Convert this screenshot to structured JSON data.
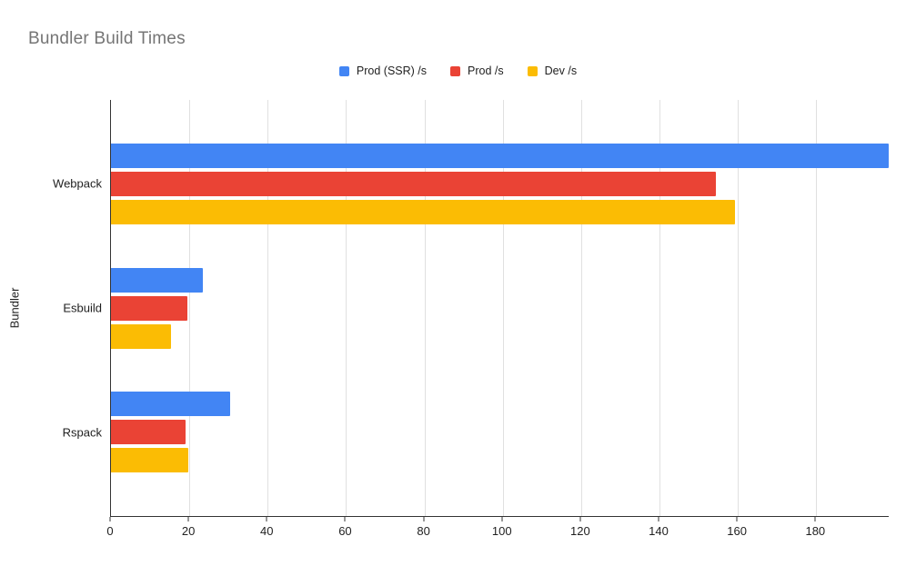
{
  "chart": {
    "title": "Bundler Build Times",
    "ylabel": "Bundler"
  },
  "chart_data": {
    "type": "bar",
    "orientation": "horizontal",
    "title": "Bundler Build Times",
    "xlabel": "",
    "ylabel": "Bundler",
    "categories": [
      "Webpack",
      "Esbuild",
      "Rspack"
    ],
    "series": [
      {
        "name": "Prod (SSR) /s",
        "color": "#4285F4",
        "values": [
          198.5,
          23.5,
          30.4
        ]
      },
      {
        "name": "Prod /s",
        "color": "#EA4335",
        "values": [
          154.3,
          19.4,
          19.0
        ]
      },
      {
        "name": "Dev /s",
        "color": "#FBBC04",
        "values": [
          159.3,
          15.3,
          19.8
        ]
      }
    ],
    "xlim": [
      0,
      198.5
    ],
    "x_ticks": [
      0,
      20,
      40,
      60,
      80,
      100,
      120,
      140,
      160,
      180
    ],
    "grid": true,
    "legend_position": "top-center"
  },
  "colors": {
    "background": "#ffffff",
    "title_text": "#757575",
    "axis_line": "#333333",
    "gridline": "#e0e0e0",
    "label_text": "#1f1f1f",
    "series_blue": "#4285F4",
    "series_red": "#EA4335",
    "series_yellow": "#FBBC04"
  }
}
